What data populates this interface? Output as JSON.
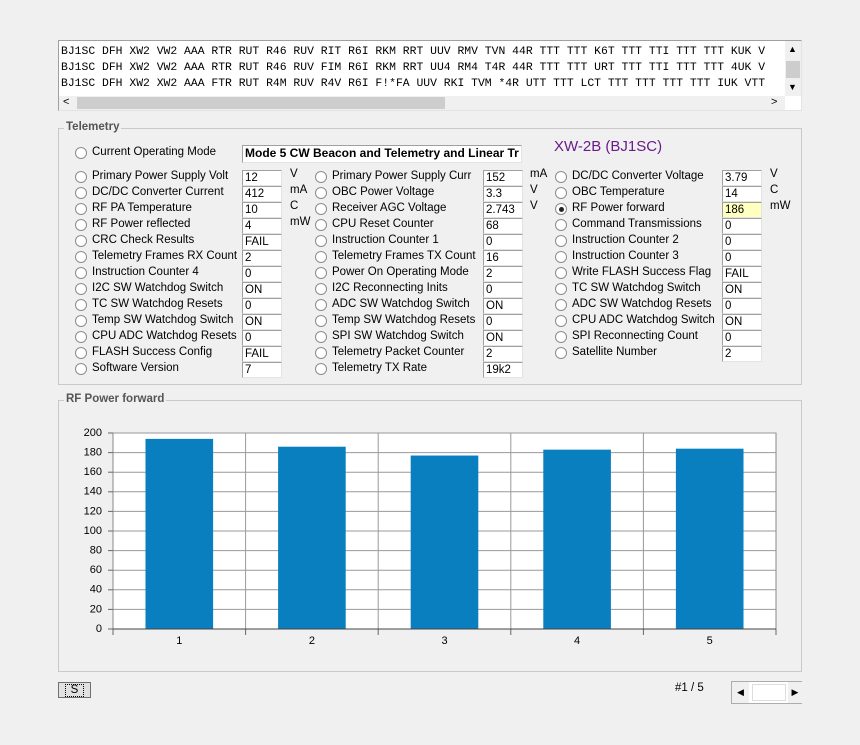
{
  "log_lines": [
    "BJ1SC DFH XW2 VW2 AAA RTR RUT R46 RUV RIT R6I RKM RRT UUV RMV TVN 44R TTT TTT K6T TTT TTI TTT TTT KUK V",
    "BJ1SC DFH XW2 VW2 AAA RTR RUT R46 RUV FIM R6I RKM RRT UU4 RM4 T4R 44R TTT TTT URT TTT TTI TTT TTT 4UK V",
    "BJ1SC DFH XW2 XW2 AAA FTR RUT R4M RUV R4V R6I F!*FA UUV RKI TVM *4R UTT TTT LCT TTT TTT TTT TTT IUK VTT"
  ],
  "telemetry": {
    "title": "Telemetry",
    "mode_label": "Current Operating Mode",
    "mode_value": "Mode 5 CW Beacon and Telemetry and Linear Tr",
    "satellite": "XW-2B (BJ1SC)",
    "columns": [
      [
        {
          "label": "Primary Power Supply Volt",
          "value": "12",
          "unit": "V"
        },
        {
          "label": "DC/DC Converter Current",
          "value": "412",
          "unit": "mA"
        },
        {
          "label": "RF PA Temperature",
          "value": "10",
          "unit": "C"
        },
        {
          "label": "RF Power reflected",
          "value": "4",
          "unit": "mW"
        },
        {
          "label": "CRC Check Results",
          "value": "FAIL"
        },
        {
          "label": "Telemetry Frames RX Count",
          "value": "2"
        },
        {
          "label": "Instruction Counter 4",
          "value": "0"
        },
        {
          "label": "I2C SW Watchdog Switch",
          "value": "ON"
        },
        {
          "label": "TC SW Watchdog Resets",
          "value": "0"
        },
        {
          "label": "Temp SW Watchdog Switch",
          "value": "ON"
        },
        {
          "label": "CPU ADC Watchdog Resets",
          "value": "0"
        },
        {
          "label": "FLASH Success Config",
          "value": "FAIL"
        },
        {
          "label": "Software Version",
          "value": "7"
        }
      ],
      [
        {
          "label": "Primary Power Supply Curr",
          "value": "152",
          "unit": "mA"
        },
        {
          "label": "OBC Power Voltage",
          "value": "3.3",
          "unit": "V"
        },
        {
          "label": "Receiver AGC Voltage",
          "value": "2.743",
          "unit": "V"
        },
        {
          "label": "CPU Reset Counter",
          "value": "68"
        },
        {
          "label": "Instruction Counter 1",
          "value": "0"
        },
        {
          "label": "Telemetry Frames TX Count",
          "value": "16"
        },
        {
          "label": "Power On Operating Mode",
          "value": "2"
        },
        {
          "label": "I2C Reconnecting Inits",
          "value": "0"
        },
        {
          "label": "ADC SW Watchdog Switch",
          "value": "ON"
        },
        {
          "label": "Temp SW Watchdog Resets",
          "value": "0"
        },
        {
          "label": "SPI SW Watchdog Switch",
          "value": "ON"
        },
        {
          "label": "Telemetry Packet Counter",
          "value": "2"
        },
        {
          "label": "Telemetry TX Rate",
          "value": "19k2"
        }
      ],
      [
        {
          "label": "DC/DC Converter Voltage",
          "value": "3.79",
          "unit": "V"
        },
        {
          "label": "OBC Temperature",
          "value": "14",
          "unit": "C"
        },
        {
          "label": "RF Power forward",
          "value": "186",
          "unit": "mW",
          "selected": true
        },
        {
          "label": "Command Transmissions",
          "value": "0"
        },
        {
          "label": "Instruction Counter 2",
          "value": "0"
        },
        {
          "label": "Instruction Counter 3",
          "value": "0"
        },
        {
          "label": "Write FLASH Success Flag",
          "value": "FAIL"
        },
        {
          "label": "TC SW Watchdog Switch",
          "value": "ON"
        },
        {
          "label": "ADC SW Watchdog Resets",
          "value": "0"
        },
        {
          "label": "CPU ADC Watchdog Switch",
          "value": "ON"
        },
        {
          "label": "SPI Reconnecting Count",
          "value": "0"
        },
        {
          "label": "Satellite Number",
          "value": "2"
        }
      ]
    ]
  },
  "chart_data": {
    "type": "bar",
    "title": "RF Power forward",
    "categories": [
      "1",
      "2",
      "3",
      "4",
      "5"
    ],
    "values": [
      194,
      186,
      177,
      183,
      184
    ],
    "color": "#0a7fc0",
    "ylim": [
      0,
      200
    ],
    "yticks": [
      0,
      20,
      40,
      60,
      80,
      100,
      120,
      140,
      160,
      180,
      200
    ],
    "grid": true
  },
  "footer": {
    "button": "S",
    "page": "#1 / 5"
  }
}
